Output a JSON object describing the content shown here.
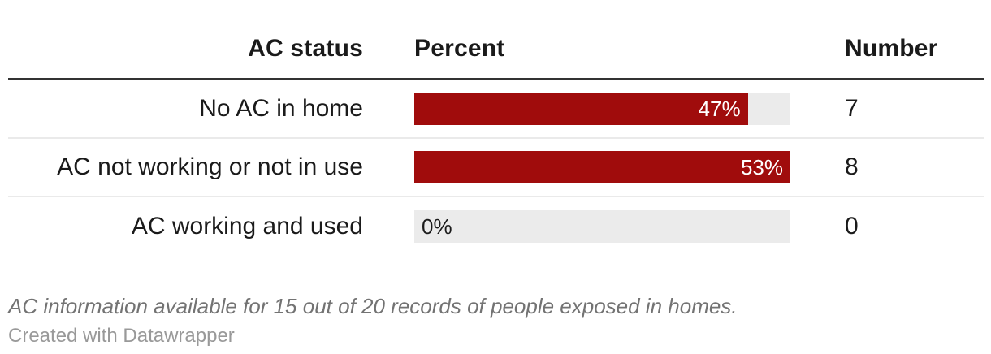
{
  "table": {
    "headers": [
      "AC status",
      "Percent",
      "Number"
    ],
    "rows": [
      {
        "label": "No AC in home",
        "percent": 47,
        "percent_label": "47%",
        "bar_width": "88.68%",
        "number": "7"
      },
      {
        "label": "AC not working or not in use",
        "percent": 53,
        "percent_label": "53%",
        "bar_width": "100%",
        "number": "8"
      },
      {
        "label": "AC working and used",
        "percent": 0,
        "percent_label": "0%",
        "bar_width": "0%",
        "number": "0"
      }
    ]
  },
  "footer": {
    "note": "AC information available for 15 out of 20 records of people exposed in homes.",
    "attribution": "Created with Datawrapper"
  },
  "colors": {
    "bar_fill": "#a00c0c",
    "bar_track": "#ebebeb",
    "header_rule": "#333333",
    "row_rule": "#eaeaea",
    "text": "#1a1a1a",
    "note": "#737373",
    "attribution": "#999999"
  },
  "chart_data": {
    "type": "bar",
    "categories": [
      "No AC in home",
      "AC not working or not in use",
      "AC working and used"
    ],
    "series": [
      {
        "name": "Percent",
        "values": [
          47,
          53,
          0
        ]
      },
      {
        "name": "Number",
        "values": [
          7,
          8,
          0
        ]
      }
    ],
    "title": "",
    "xlabel": "AC status",
    "ylabel": "Percent",
    "bar_scale_max": 53,
    "value_labels": [
      "47%",
      "53%",
      "0%"
    ],
    "orientation": "horizontal",
    "grid": false,
    "legend_position": "none",
    "notes": "AC information available for 15 out of 20 records of people exposed in homes."
  }
}
